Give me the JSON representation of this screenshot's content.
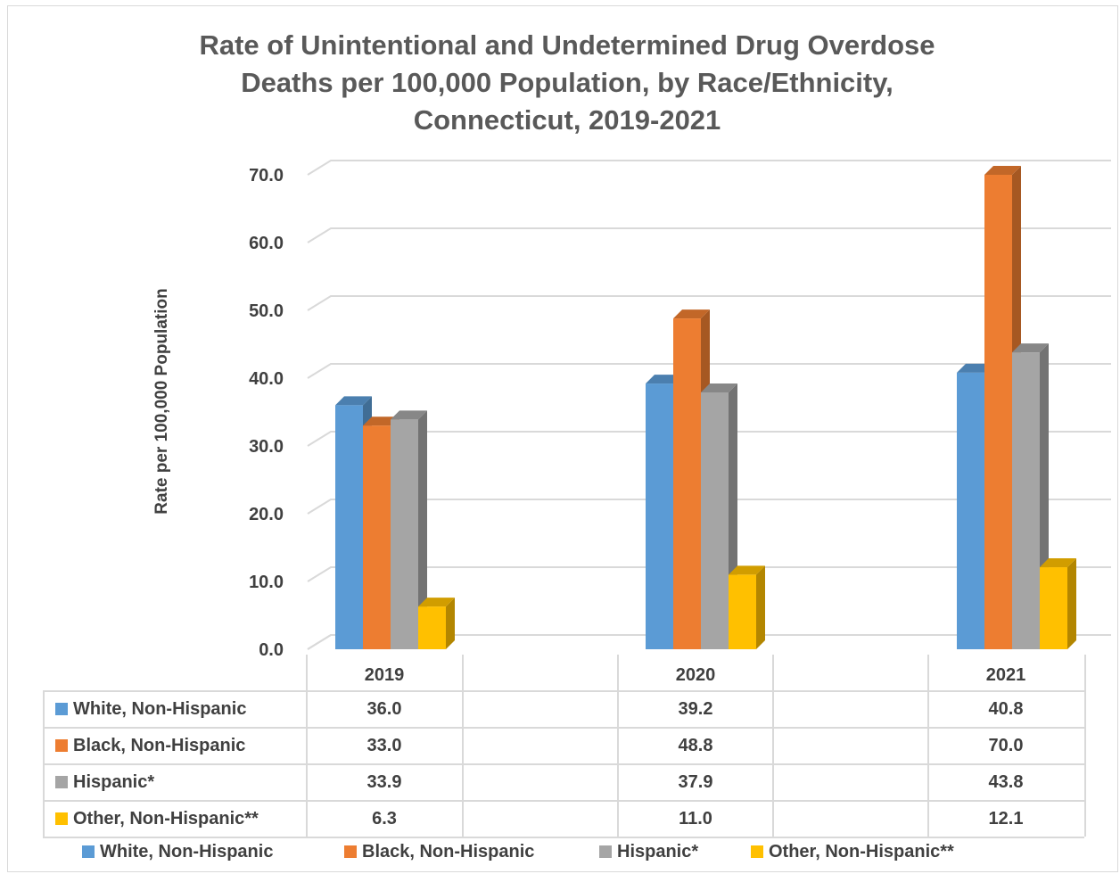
{
  "chart_data": {
    "type": "bar",
    "title_lines": [
      "Rate of Unintentional and Undetermined Drug Overdose",
      "Deaths per 100,000 Population, by Race/Ethnicity,",
      "Connecticut, 2019-2021"
    ],
    "ylabel": "Rate per 100,000 Population",
    "xlabel": "",
    "ylim": [
      0,
      70
    ],
    "yticks": [
      "0.0",
      "10.0",
      "20.0",
      "30.0",
      "40.0",
      "50.0",
      "60.0",
      "70.0"
    ],
    "grid": true,
    "categories": [
      "2019",
      "2020",
      "2021"
    ],
    "series": [
      {
        "name": "White, Non-Hispanic",
        "values": [
          36.0,
          39.2,
          40.8
        ],
        "labels": [
          "36.0",
          "39.2",
          "40.8"
        ],
        "color": "#5b9bd5"
      },
      {
        "name": "Black, Non-Hispanic",
        "values": [
          33.0,
          48.8,
          70.0
        ],
        "labels": [
          "33.0",
          "48.8",
          "70.0"
        ],
        "color": "#ed7d31"
      },
      {
        "name": "Hispanic*",
        "values": [
          33.9,
          37.9,
          43.8
        ],
        "labels": [
          "33.9",
          "37.9",
          "43.8"
        ],
        "color": "#a5a5a5"
      },
      {
        "name": "Other, Non-Hispanic**",
        "values": [
          6.3,
          11.0,
          12.1
        ],
        "labels": [
          "6.3",
          "11.0",
          "12.1"
        ],
        "color": "#ffc000"
      }
    ],
    "data_table": true,
    "legend_position": "bottom"
  }
}
